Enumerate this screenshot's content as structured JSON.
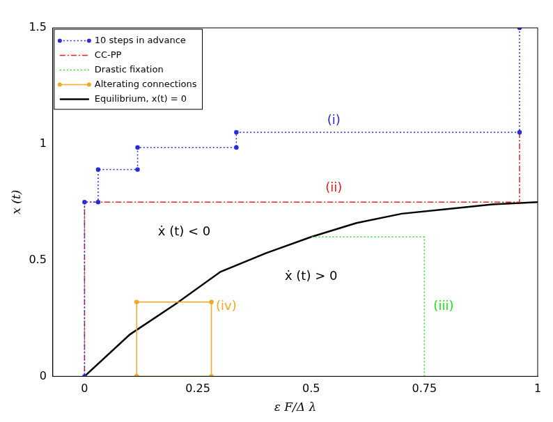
{
  "chart_data": {
    "type": "line",
    "x_label": "ε F/Δ λ",
    "y_label": "x (t)",
    "xlim": [
      -0.07,
      1
    ],
    "xticks": [
      0,
      0.25,
      0.5,
      0.75,
      1
    ],
    "ylim": [
      0,
      1.5
    ],
    "yticks": [
      0,
      0.5,
      1,
      1.5
    ],
    "grid": false,
    "legend": "upper left",
    "series": [
      {
        "name": "10 steps in advance",
        "color": "#2a2ad8",
        "marker": "circle",
        "line_style": "dotted",
        "x": [
          0.96,
          0.96,
          0.335,
          0.335,
          0.117,
          0.117,
          0.03,
          0.03,
          0,
          0
        ],
        "values": [
          1.5,
          1.05,
          1.05,
          0.985,
          0.985,
          0.89,
          0.89,
          0.75,
          0.75,
          0
        ]
      },
      {
        "name": "CC-PP",
        "color": "#e02020",
        "line_style": "dashdot",
        "x": [
          0.96,
          0.96,
          0,
          0
        ],
        "values": [
          1.05,
          0.75,
          0.75,
          0
        ]
      },
      {
        "name": "Drastic fixation",
        "color": "#22dd22",
        "line_style": "dotted",
        "x": [
          0.75,
          0.75,
          0.5
        ],
        "values": [
          0,
          0.6,
          0.6
        ]
      },
      {
        "name": "Alterating connections",
        "color": "#f5a623",
        "marker": "circle",
        "line_style": "solid",
        "type": "area",
        "x": [
          0.115,
          0.115,
          0.28,
          0.28,
          0.115
        ],
        "values": [
          0,
          0.32,
          0.32,
          0,
          0
        ]
      },
      {
        "name": "Equilibrium, x(t) = 0",
        "color": "#000000",
        "line_style": "solid",
        "x": [
          0,
          0.1,
          0.2,
          0.3,
          0.4,
          0.5,
          0.6,
          0.7,
          0.8,
          0.9,
          1
        ],
        "values": [
          0,
          0.18,
          0.31,
          0.45,
          0.53,
          0.6,
          0.66,
          0.7,
          0.72,
          0.74,
          0.75
        ]
      }
    ],
    "annotations": [
      {
        "text": "(i)",
        "color": "#2a2ad8"
      },
      {
        "text": "(ii)",
        "color": "#e02020"
      },
      {
        "text": "(iii)",
        "color": "#22dd22"
      },
      {
        "text": "(iv)",
        "color": "#f5a623"
      },
      {
        "text": "ẋ (t) < 0",
        "color": "#000000"
      },
      {
        "text": "ẋ (t) > 0",
        "color": "#000000"
      }
    ]
  }
}
